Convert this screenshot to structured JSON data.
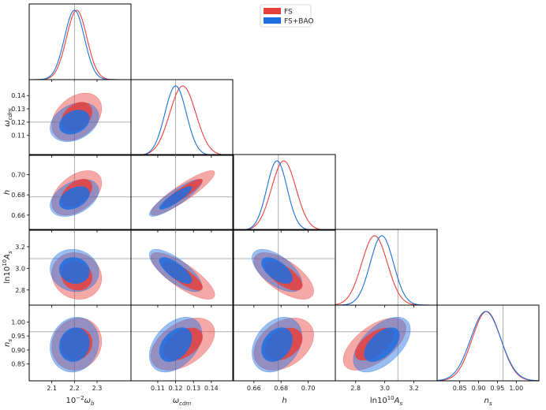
{
  "chart_data": {
    "type": "triangle",
    "title": "",
    "parameters": [
      {
        "id": "omega_b",
        "label": "10⁻²ωb",
        "label_main": "10",
        "label_sup": "−2",
        "label_sym": "ω",
        "label_sub": "b",
        "range": [
          2.0,
          2.45
        ],
        "ticks": [
          2.1,
          2.2,
          2.3
        ],
        "tick_labels": [
          "2.1",
          "2.2",
          "2.3"
        ],
        "fiducial": 2.2
      },
      {
        "id": "omega_cdm",
        "label": "ωcdm",
        "label_main": "",
        "label_sup": "",
        "label_sym": "ω",
        "label_sub": "cdm",
        "range": [
          0.095,
          0.152
        ],
        "ticks": [
          0.11,
          0.12,
          0.13,
          0.14
        ],
        "tick_labels": [
          "0.11",
          "0.12",
          "0.13",
          "0.14"
        ],
        "fiducial": 0.12
      },
      {
        "id": "h",
        "label": "h",
        "label_main": "",
        "label_sup": "",
        "label_sym": "h",
        "label_sub": "",
        "range": [
          0.645,
          0.72
        ],
        "ticks": [
          0.66,
          0.68,
          0.7
        ],
        "tick_labels": [
          "0.66",
          "0.68",
          "0.70"
        ],
        "fiducial": 0.678
      },
      {
        "id": "ln10As",
        "label": "ln10¹⁰As",
        "label_main": "ln10",
        "label_sup": "10",
        "label_sym": "A",
        "label_sub": "s",
        "range": [
          2.66,
          3.36
        ],
        "ticks": [
          2.8,
          3.0,
          3.2
        ],
        "tick_labels": [
          "2.8",
          "3.0",
          "3.2"
        ],
        "fiducial": 3.09
      },
      {
        "id": "ns",
        "label": "ns",
        "label_main": "",
        "label_sup": "",
        "label_sym": "n",
        "label_sub": "s",
        "range": [
          0.79,
          1.06
        ],
        "ticks": [
          0.85,
          0.9,
          0.95,
          1.0
        ],
        "tick_labels": [
          "0.85",
          "0.90",
          "0.95",
          "1.00"
        ],
        "fiducial": 0.965
      }
    ],
    "series": [
      {
        "name": "FS",
        "color": "#e8413c",
        "mean": [
          2.21,
          0.124,
          0.682,
          2.93,
          0.921
        ],
        "sigma": [
          0.045,
          0.0073,
          0.009,
          0.088,
          0.038
        ],
        "corr": [
          [
            1,
            0.35,
            0.45,
            -0.1,
            0.1
          ],
          [
            0.35,
            1,
            0.9,
            -0.8,
            0.45
          ],
          [
            0.45,
            0.9,
            1,
            -0.65,
            0.35
          ],
          [
            -0.1,
            -0.8,
            -0.65,
            1,
            0.6
          ],
          [
            0.1,
            0.45,
            0.35,
            0.6,
            1
          ]
        ]
      },
      {
        "name": "FS+BAO",
        "color": "#1f6fe0",
        "mean": [
          2.2,
          0.12,
          0.677,
          2.98,
          0.919
        ],
        "sigma": [
          0.044,
          0.006,
          0.0075,
          0.08,
          0.04
        ],
        "corr": [
          [
            1,
            0.3,
            0.4,
            -0.08,
            0.1
          ],
          [
            0.3,
            1,
            0.88,
            -0.75,
            0.4
          ],
          [
            0.4,
            0.88,
            1,
            -0.6,
            0.3
          ],
          [
            -0.08,
            -0.75,
            -0.6,
            1,
            0.55
          ],
          [
            0.1,
            0.4,
            0.3,
            0.55,
            1
          ]
        ]
      }
    ],
    "contour_levels": [
      "68%",
      "95%"
    ],
    "legend": {
      "position": "top-center",
      "entries": [
        "FS",
        "FS+BAO"
      ]
    },
    "reference_lines": true
  }
}
